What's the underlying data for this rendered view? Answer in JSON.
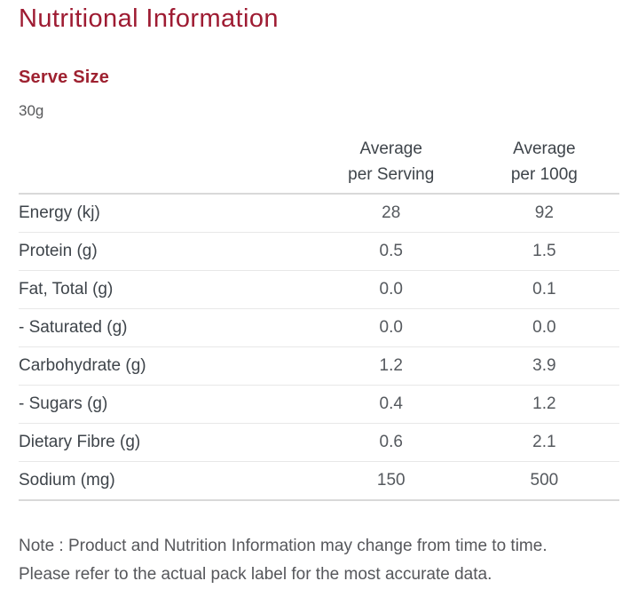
{
  "document": {
    "title": "Nutritional Information",
    "section_heading": "Serve Size",
    "serve_size": "30g",
    "note": "Note : Product and Nutrition Information may change from time to time. Please refer to the actual pack label for the most accurate data."
  },
  "table": {
    "headers": [
      {
        "line1": "Average",
        "line2": "per Serving"
      },
      {
        "line1": "Average",
        "line2": "per 100g"
      }
    ],
    "rows": [
      {
        "label": "Energy (kj)",
        "per_serving": "28",
        "per_100g": "92"
      },
      {
        "label": "Protein (g)",
        "per_serving": "0.5",
        "per_100g": "1.5"
      },
      {
        "label": "Fat, Total (g)",
        "per_serving": "0.0",
        "per_100g": "0.1"
      },
      {
        "label": "- Saturated (g)",
        "per_serving": "0.0",
        "per_100g": "0.0"
      },
      {
        "label": "Carbohydrate (g)",
        "per_serving": "1.2",
        "per_100g": "3.9"
      },
      {
        "label": "- Sugars (g)",
        "per_serving": "0.4",
        "per_100g": "1.2"
      },
      {
        "label": "Dietary Fibre (g)",
        "per_serving": "0.6",
        "per_100g": "2.1"
      },
      {
        "label": "Sodium (mg)",
        "per_serving": "150",
        "per_100g": "500"
      }
    ]
  },
  "colors": {
    "heading_red": "#9e1b32",
    "label_dark": "#3e444a",
    "value_gray": "#55595e",
    "note_gray": "#56575b",
    "border_light": "#e8e8e8",
    "border_strong": "#d9d9d9"
  }
}
